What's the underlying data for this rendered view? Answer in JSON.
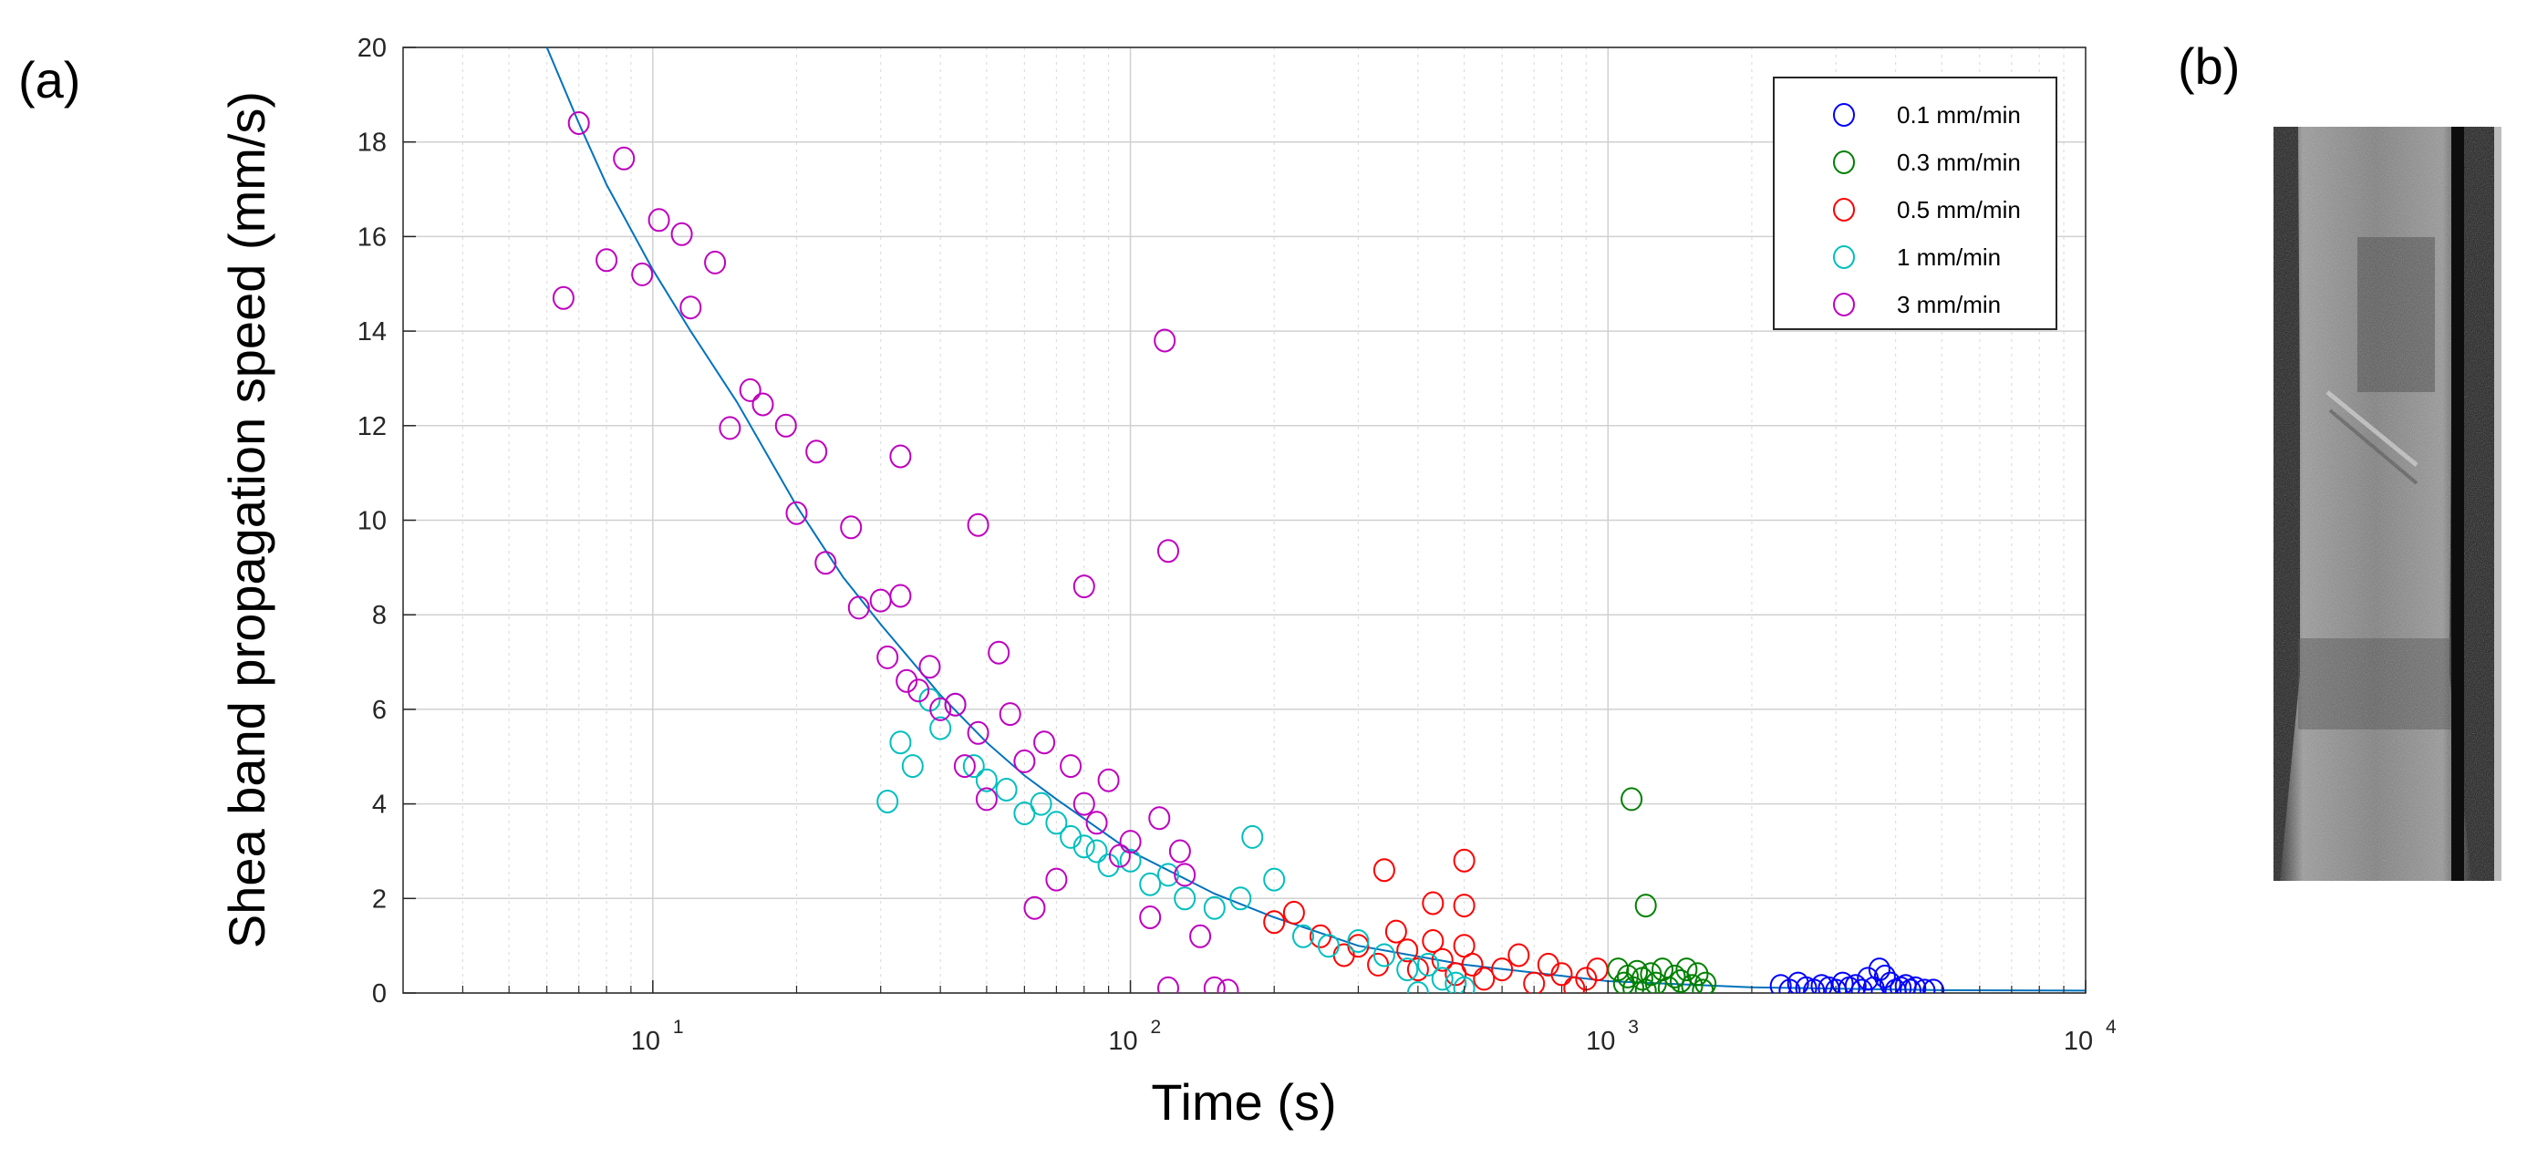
{
  "panel_labels": {
    "a": "(a)",
    "b": "(b)"
  },
  "chart_data": {
    "type": "scatter",
    "xscale": "log",
    "xlabel": "Time (s)",
    "ylabel": "Shea band propagation speed (mm/s)",
    "xlim": [
      3,
      10000
    ],
    "ylim": [
      0,
      20
    ],
    "yticks": [
      0,
      2,
      4,
      6,
      8,
      10,
      12,
      14,
      16,
      18,
      20
    ],
    "xticks": [
      {
        "value": 10,
        "base": "10",
        "exp": "1"
      },
      {
        "value": 100,
        "base": "10",
        "exp": "2"
      },
      {
        "value": 1000,
        "base": "10",
        "exp": "3"
      },
      {
        "value": 10000,
        "base": "10",
        "exp": "4"
      }
    ],
    "grid": true,
    "legend_position": "top-right",
    "marker": "circle-open",
    "fit_curve": {
      "name": "fit",
      "color": "#0072BD",
      "x": [
        6,
        7,
        8,
        10,
        12,
        15,
        20,
        25,
        30,
        40,
        50,
        60,
        70,
        100,
        150,
        200,
        300,
        500,
        1000,
        2000,
        5000,
        10000
      ],
      "y": [
        20,
        18.4,
        17.1,
        15.3,
        14.0,
        12.5,
        10.3,
        8.8,
        7.8,
        6.3,
        5.3,
        4.6,
        4.1,
        3.0,
        2.1,
        1.6,
        1.0,
        0.6,
        0.25,
        0.12,
        0.06,
        0.05
      ]
    },
    "series": [
      {
        "name": "0.1 mm/min",
        "color": "#0000FF",
        "x": [
          2300,
          2400,
          2500,
          2600,
          2700,
          2800,
          2900,
          3000,
          3100,
          3200,
          3300,
          3400,
          3500,
          3600,
          3700,
          3800,
          3900,
          4000,
          4100,
          4200,
          4300,
          4400,
          4600,
          4800
        ],
        "y": [
          0.15,
          0.05,
          0.2,
          0.1,
          0.05,
          0.15,
          0.1,
          0.05,
          0.2,
          0.1,
          0.15,
          0.05,
          0.3,
          0.1,
          0.5,
          0.35,
          0.2,
          0.05,
          0.1,
          0.15,
          0.05,
          0.1,
          0.05,
          0.05
        ]
      },
      {
        "name": "0.3 mm/min",
        "color": "#008000",
        "x": [
          1050,
          1080,
          1100,
          1130,
          1150,
          1180,
          1200,
          1230,
          1260,
          1300,
          1340,
          1380,
          1420,
          1460,
          1500,
          1540,
          1580,
          1600,
          1120,
          1200
        ],
        "y": [
          0.5,
          0.2,
          0.35,
          0.1,
          0.45,
          0.3,
          0.05,
          0.4,
          0.2,
          0.5,
          0.1,
          0.35,
          0.25,
          0.5,
          0.15,
          0.4,
          0.05,
          0.2,
          4.1,
          1.85
        ]
      },
      {
        "name": "0.5 mm/min",
        "color": "#FF0000",
        "x": [
          200,
          220,
          250,
          280,
          300,
          330,
          360,
          380,
          400,
          430,
          450,
          480,
          500,
          520,
          550,
          600,
          650,
          700,
          750,
          800,
          850,
          900,
          950,
          340,
          500,
          500,
          430
        ],
        "y": [
          1.5,
          1.7,
          1.2,
          0.8,
          1.0,
          0.6,
          1.3,
          0.9,
          0.5,
          1.1,
          0.7,
          0.4,
          1.0,
          0.6,
          0.3,
          0.5,
          0.8,
          0.2,
          0.6,
          0.4,
          0.1,
          0.3,
          0.5,
          2.6,
          2.8,
          1.85,
          1.9
        ]
      },
      {
        "name": "1 mm/min",
        "color": "#00BFBF",
        "x": [
          31,
          33,
          35,
          38,
          40,
          43,
          47,
          50,
          55,
          60,
          65,
          70,
          75,
          80,
          85,
          90,
          100,
          110,
          120,
          130,
          150,
          170,
          180,
          200,
          230,
          260,
          300,
          340,
          380,
          400,
          420,
          450,
          480,
          500
        ],
        "y": [
          4.05,
          5.3,
          4.8,
          6.2,
          5.6,
          6.1,
          4.8,
          4.5,
          4.3,
          3.8,
          4.0,
          3.6,
          3.3,
          3.1,
          3.0,
          2.7,
          2.8,
          2.3,
          2.5,
          2.0,
          1.8,
          2.0,
          3.3,
          2.4,
          1.2,
          1.0,
          1.1,
          0.8,
          0.5,
          0.0,
          0.6,
          0.3,
          0.2,
          0.1
        ]
      },
      {
        "name": "3 mm/min",
        "color": "#BF00BF",
        "x": [
          6.5,
          7,
          8,
          8.7,
          9.5,
          10.3,
          11.5,
          12,
          13.5,
          14.5,
          16,
          17,
          19,
          20,
          22,
          23,
          26,
          27,
          30,
          31,
          33,
          34,
          36,
          38,
          40,
          43,
          45,
          48,
          50,
          53,
          56,
          60,
          63,
          66,
          70,
          75,
          80,
          85,
          90,
          95,
          100,
          110,
          115,
          120,
          127,
          130,
          140,
          150,
          160,
          33,
          48,
          80,
          118,
          120
        ],
        "y": [
          14.7,
          18.4,
          15.5,
          17.65,
          15.2,
          16.35,
          16.05,
          14.5,
          15.45,
          11.95,
          12.75,
          12.45,
          12.0,
          10.15,
          11.45,
          9.1,
          9.85,
          8.15,
          8.3,
          7.1,
          8.4,
          6.6,
          6.4,
          6.9,
          6.0,
          6.1,
          4.8,
          5.5,
          4.1,
          7.2,
          5.9,
          4.9,
          1.8,
          5.3,
          2.4,
          4.8,
          4.0,
          3.6,
          4.5,
          2.9,
          3.2,
          1.6,
          3.7,
          0.1,
          3.0,
          2.5,
          1.2,
          0.1,
          0.05,
          11.35,
          9.9,
          8.6,
          13.8,
          9.35
        ]
      }
    ]
  }
}
